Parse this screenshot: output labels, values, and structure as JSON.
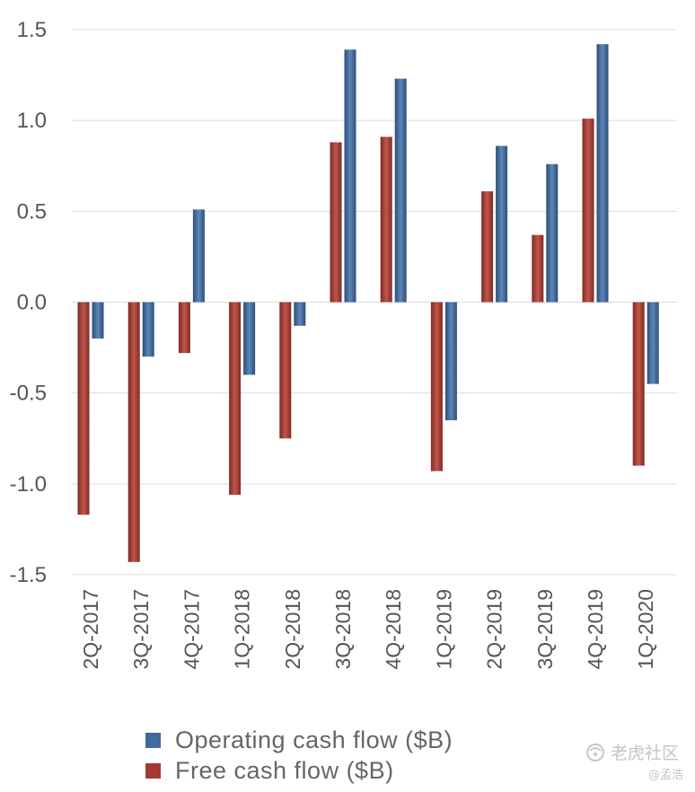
{
  "chart_data": {
    "type": "bar",
    "categories": [
      "2Q-2017",
      "3Q-2017",
      "4Q-2017",
      "1Q-2018",
      "2Q-2018",
      "3Q-2018",
      "4Q-2018",
      "1Q-2019",
      "2Q-2019",
      "3Q-2019",
      "4Q-2019",
      "1Q-2020"
    ],
    "series": [
      {
        "name": "Free cash flow ($B)",
        "color": "#a23b32",
        "values": [
          -1.17,
          -1.43,
          -0.28,
          -1.06,
          -0.75,
          0.88,
          0.91,
          -0.93,
          0.61,
          0.37,
          1.01,
          -0.9
        ]
      },
      {
        "name": "Operating cash flow ($B)",
        "color": "#3f6a9a",
        "values": [
          -0.2,
          -0.3,
          0.51,
          -0.4,
          -0.13,
          1.39,
          1.23,
          -0.65,
          0.86,
          0.76,
          1.42,
          -0.45
        ]
      }
    ],
    "yticks": [
      "1.5",
      "1.0",
      "0.5",
      "0.0",
      "-0.5",
      "-1.0",
      "-1.5"
    ],
    "ylim": [
      -1.5,
      1.5
    ],
    "grid": true,
    "legend_position": "bottom",
    "legend_order": [
      "Operating cash flow ($B)",
      "Free cash flow ($B)"
    ]
  },
  "watermark": {
    "brand": "老虎社区",
    "author": "@孟浩",
    "icon": "tiger-logo-icon"
  }
}
